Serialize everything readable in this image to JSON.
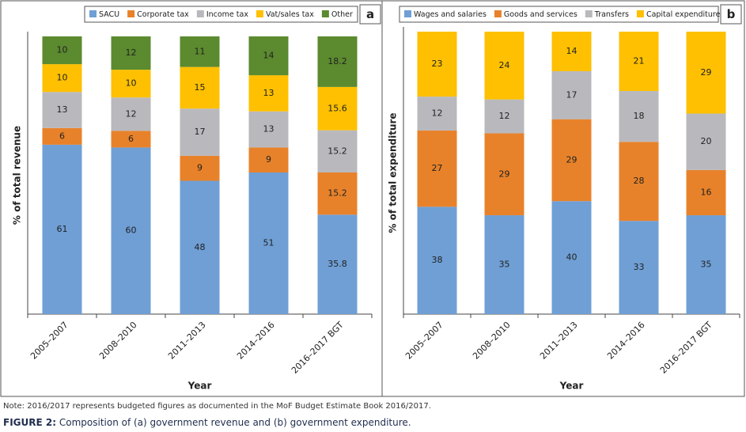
{
  "chart_data": [
    {
      "type": "stacked_bar",
      "panel_label": "a",
      "xlabel": "Year",
      "ylabel": "% of total revenue",
      "categories": [
        "2005–2007",
        "2008–2010",
        "2011–2013",
        "2014–2016",
        "2016–2017 BGT"
      ],
      "ylim": [
        0,
        100
      ],
      "legend": "top",
      "series": [
        {
          "name": "SACU",
          "color": "#6f9fd5",
          "values": [
            61,
            60,
            48,
            51,
            35.8
          ]
        },
        {
          "name": "Corporate tax",
          "color": "#e8822a",
          "values": [
            6,
            6,
            9,
            9,
            15.2
          ]
        },
        {
          "name": "Income tax",
          "color": "#b9b9bd",
          "values": [
            13,
            12,
            17,
            13,
            15.2
          ]
        },
        {
          "name": "Vat/sales tax",
          "color": "#fec000",
          "values": [
            10,
            10,
            15,
            13,
            15.6
          ]
        },
        {
          "name": "Other",
          "color": "#5b8a2f",
          "values": [
            10,
            12,
            11,
            14,
            18.2
          ]
        }
      ]
    },
    {
      "type": "stacked_bar",
      "panel_label": "b",
      "xlabel": "Year",
      "ylabel": "% of total expenditure",
      "categories": [
        "2005–2007",
        "2008–2010",
        "2011–2013",
        "2014–2016",
        "2016–2017 BGT"
      ],
      "ylim": [
        0,
        100
      ],
      "legend": "top",
      "series": [
        {
          "name": "Wages and salaries",
          "color": "#6f9fd5",
          "values": [
            38,
            35,
            40,
            33,
            35
          ]
        },
        {
          "name": "Goods and services",
          "color": "#e8822a",
          "values": [
            27,
            29,
            29,
            28,
            16
          ]
        },
        {
          "name": "Transfers",
          "color": "#b9b9bd",
          "values": [
            12,
            12,
            17,
            18,
            20
          ]
        },
        {
          "name": "Capital expenditure",
          "color": "#fec000",
          "values": [
            23,
            24,
            14,
            21,
            29
          ]
        }
      ]
    }
  ],
  "note": "Note: 2016/2017 represents budgeted figures as documented in the MoF Budget Estimate Book 2016/2017.",
  "figure_label": "FIGURE 2:",
  "caption": "Composition of (a) government revenue and (b) government expenditure."
}
